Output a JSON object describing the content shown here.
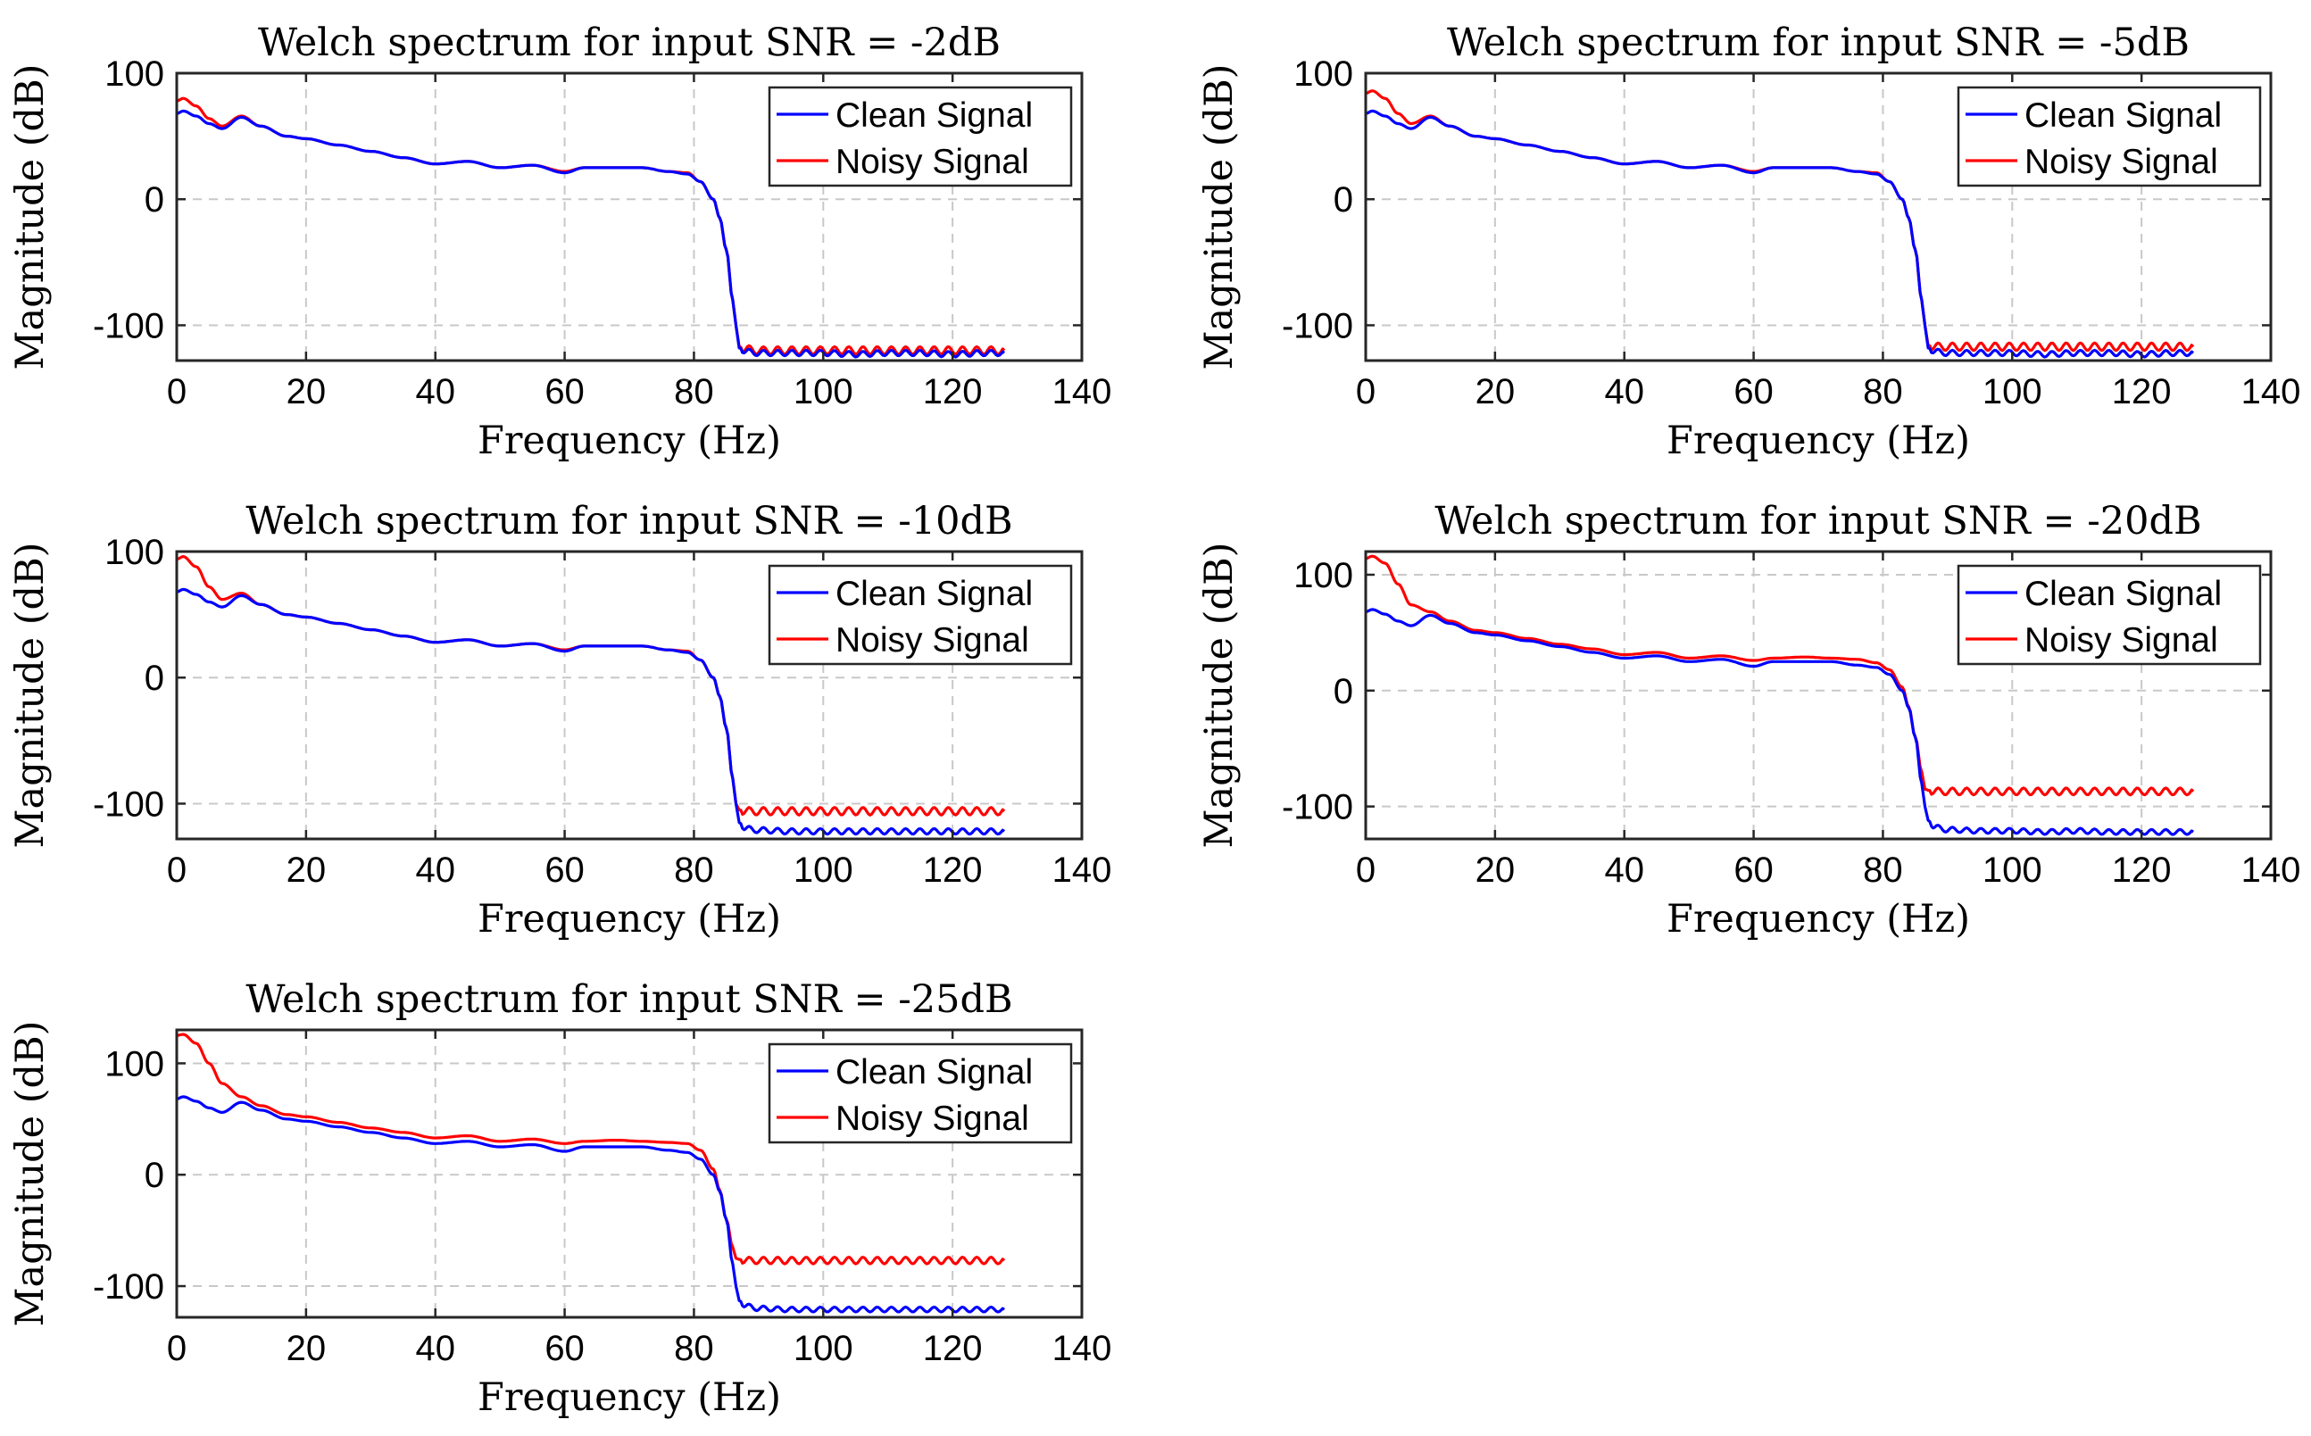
{
  "chart_data": [
    {
      "type": "line",
      "title": "Welch spectrum for input SNR = -2dB",
      "xlabel": "Frequency (Hz)",
      "ylabel": "Magnitude (dB)",
      "xlim": [
        0,
        140
      ],
      "ylim": [
        -128,
        100
      ],
      "xticks": [
        0,
        20,
        40,
        60,
        80,
        100,
        120,
        140
      ],
      "yticks": [
        -100,
        0,
        100
      ],
      "grid": true,
      "legend": "top-right",
      "noise_floor": -121,
      "series": [
        {
          "name": "Clean Signal",
          "color": "#0000ff",
          "x": [
            0,
            1,
            3,
            5,
            7,
            10,
            13,
            17,
            20,
            25,
            30,
            35,
            40,
            45,
            50,
            55,
            60,
            63,
            68,
            72,
            76,
            79,
            81,
            83,
            84,
            85,
            86,
            86.5,
            87,
            88,
            90,
            95,
            100,
            105,
            110,
            115,
            120,
            125,
            128
          ],
          "y": [
            68,
            70,
            66,
            60,
            56,
            65,
            58,
            50,
            48,
            43,
            38,
            33,
            28,
            30,
            25,
            27,
            21,
            25,
            25,
            25,
            22,
            20,
            14,
            0,
            -15,
            -40,
            -80,
            -100,
            -118,
            -121,
            -122,
            -122,
            -122,
            -123,
            -122,
            -122,
            -123,
            -122,
            -122
          ]
        },
        {
          "name": "Noisy Signal",
          "color": "#ff0000",
          "x": [
            0,
            1,
            3,
            5,
            7,
            10,
            13,
            17,
            20,
            25,
            30,
            35,
            40,
            45,
            50,
            55,
            60,
            63,
            68,
            72,
            76,
            79,
            81,
            83,
            84,
            85,
            86,
            86.5,
            87,
            88,
            90,
            95,
            100,
            105,
            110,
            115,
            120,
            125,
            128
          ],
          "y": [
            78,
            80,
            74,
            64,
            58,
            66,
            58,
            50,
            48,
            43,
            38,
            33,
            28,
            30,
            25,
            27,
            22,
            25,
            25,
            25,
            22,
            21,
            14,
            0,
            -15,
            -40,
            -80,
            -100,
            -117,
            -119,
            -120,
            -120,
            -120,
            -120,
            -120,
            -120,
            -120,
            -120,
            -120
          ]
        }
      ]
    },
    {
      "type": "line",
      "title": "Welch spectrum for input SNR = -5dB",
      "xlabel": "Frequency (Hz)",
      "ylabel": "Magnitude (dB)",
      "xlim": [
        0,
        140
      ],
      "ylim": [
        -128,
        100
      ],
      "xticks": [
        0,
        20,
        40,
        60,
        80,
        100,
        120,
        140
      ],
      "yticks": [
        -100,
        0,
        100
      ],
      "grid": true,
      "legend": "top-right",
      "noise_floor": -118,
      "series": [
        {
          "name": "Clean Signal",
          "color": "#0000ff",
          "x": [
            0,
            1,
            3,
            5,
            7,
            10,
            13,
            17,
            20,
            25,
            30,
            35,
            40,
            45,
            50,
            55,
            60,
            63,
            68,
            72,
            76,
            79,
            81,
            83,
            84,
            85,
            86,
            86.5,
            87,
            88,
            90,
            95,
            100,
            105,
            110,
            115,
            120,
            125,
            128
          ],
          "y": [
            68,
            70,
            66,
            60,
            56,
            65,
            58,
            50,
            48,
            43,
            38,
            33,
            28,
            30,
            25,
            27,
            21,
            25,
            25,
            25,
            22,
            20,
            14,
            0,
            -15,
            -40,
            -80,
            -100,
            -118,
            -121,
            -122,
            -122,
            -122,
            -123,
            -122,
            -122,
            -123,
            -122,
            -122
          ]
        },
        {
          "name": "Noisy Signal",
          "color": "#ff0000",
          "x": [
            0,
            1,
            3,
            5,
            7,
            10,
            13,
            17,
            20,
            25,
            30,
            35,
            40,
            45,
            50,
            55,
            60,
            63,
            68,
            72,
            76,
            79,
            81,
            83,
            84,
            85,
            86,
            86.5,
            87,
            88,
            90,
            95,
            100,
            105,
            110,
            115,
            120,
            125,
            128
          ],
          "y": [
            84,
            86,
            80,
            68,
            60,
            66,
            58,
            50,
            48,
            43,
            38,
            33,
            28,
            30,
            25,
            27,
            22,
            25,
            25,
            25,
            22,
            21,
            14,
            0,
            -15,
            -40,
            -80,
            -100,
            -116,
            -117,
            -117,
            -117,
            -117,
            -117,
            -117,
            -117,
            -117,
            -117,
            -117
          ]
        }
      ]
    },
    {
      "type": "line",
      "title": "Welch spectrum for input SNR = -10dB",
      "xlabel": "Frequency (Hz)",
      "ylabel": "Magnitude (dB)",
      "xlim": [
        0,
        140
      ],
      "ylim": [
        -128,
        100
      ],
      "xticks": [
        0,
        20,
        40,
        60,
        80,
        100,
        120,
        140
      ],
      "yticks": [
        -100,
        0,
        100
      ],
      "grid": true,
      "legend": "top-right",
      "noise_floor": -107,
      "series": [
        {
          "name": "Clean Signal",
          "color": "#0000ff",
          "x": [
            0,
            1,
            3,
            5,
            7,
            10,
            13,
            17,
            20,
            25,
            30,
            35,
            40,
            45,
            50,
            55,
            60,
            63,
            68,
            72,
            76,
            79,
            81,
            83,
            84,
            85,
            86,
            86.5,
            87,
            88,
            90,
            95,
            100,
            105,
            110,
            115,
            120,
            125,
            128
          ],
          "y": [
            68,
            70,
            66,
            60,
            56,
            65,
            58,
            50,
            48,
            43,
            38,
            33,
            28,
            30,
            25,
            27,
            21,
            25,
            25,
            25,
            22,
            20,
            14,
            0,
            -15,
            -40,
            -80,
            -100,
            -115,
            -120,
            -121,
            -122,
            -122,
            -122,
            -122,
            -122,
            -122,
            -122,
            -122
          ]
        },
        {
          "name": "Noisy Signal",
          "color": "#ff0000",
          "x": [
            0,
            1,
            3,
            5,
            7,
            10,
            13,
            17,
            20,
            25,
            30,
            35,
            40,
            45,
            50,
            55,
            60,
            63,
            68,
            72,
            76,
            79,
            81,
            83,
            84,
            85,
            86,
            86.5,
            87,
            88,
            90,
            95,
            100,
            105,
            110,
            115,
            120,
            125,
            128
          ],
          "y": [
            94,
            96,
            88,
            72,
            62,
            67,
            58,
            50,
            48,
            43,
            38,
            33,
            28,
            30,
            25,
            27,
            22,
            25,
            25,
            25,
            22,
            21,
            14,
            0,
            -15,
            -40,
            -80,
            -100,
            -105,
            -106,
            -106,
            -106,
            -106,
            -106,
            -106,
            -106,
            -106,
            -106,
            -106
          ]
        }
      ]
    },
    {
      "type": "line",
      "title": "Welch spectrum for input SNR = -20dB",
      "xlabel": "Frequency (Hz)",
      "ylabel": "Magnitude (dB)",
      "xlim": [
        0,
        140
      ],
      "ylim": [
        -128,
        120
      ],
      "xticks": [
        0,
        20,
        40,
        60,
        80,
        100,
        120,
        140
      ],
      "yticks": [
        -100,
        0,
        100
      ],
      "grid": true,
      "legend": "top-right",
      "noise_floor": -87,
      "series": [
        {
          "name": "Clean Signal",
          "color": "#0000ff",
          "x": [
            0,
            1,
            3,
            5,
            7,
            10,
            13,
            17,
            20,
            25,
            30,
            35,
            40,
            45,
            50,
            55,
            60,
            63,
            68,
            72,
            76,
            79,
            81,
            83,
            84,
            85,
            86,
            86.5,
            87,
            88,
            90,
            95,
            100,
            105,
            110,
            115,
            120,
            125,
            128
          ],
          "y": [
            68,
            70,
            66,
            60,
            56,
            65,
            58,
            50,
            48,
            43,
            38,
            33,
            28,
            30,
            25,
            27,
            21,
            25,
            25,
            25,
            22,
            20,
            14,
            0,
            -15,
            -40,
            -80,
            -100,
            -112,
            -118,
            -120,
            -121,
            -121,
            -122,
            -121,
            -122,
            -122,
            -122,
            -122
          ]
        },
        {
          "name": "Noisy Signal",
          "color": "#ff0000",
          "x": [
            0,
            1,
            3,
            5,
            7,
            10,
            13,
            17,
            20,
            25,
            30,
            35,
            40,
            45,
            50,
            55,
            60,
            63,
            68,
            72,
            76,
            79,
            81,
            83,
            84,
            85,
            86,
            86.5,
            87,
            88,
            90,
            95,
            100,
            105,
            110,
            115,
            120,
            125,
            128
          ],
          "y": [
            114,
            116,
            110,
            92,
            74,
            68,
            60,
            52,
            50,
            45,
            40,
            36,
            31,
            33,
            28,
            30,
            26,
            28,
            29,
            28,
            27,
            24,
            18,
            3,
            -14,
            -40,
            -70,
            -85,
            -86,
            -87,
            -87,
            -87,
            -87,
            -87,
            -87,
            -87,
            -87,
            -87,
            -87
          ]
        }
      ]
    },
    {
      "type": "line",
      "title": "Welch spectrum for input SNR = -25dB",
      "xlabel": "Frequency (Hz)",
      "ylabel": "Magnitude (dB)",
      "xlim": [
        0,
        140
      ],
      "ylim": [
        -128,
        130
      ],
      "xticks": [
        0,
        20,
        40,
        60,
        80,
        100,
        120,
        140
      ],
      "yticks": [
        -100,
        0,
        100
      ],
      "grid": true,
      "legend": "top-right",
      "noise_floor": -77,
      "series": [
        {
          "name": "Clean Signal",
          "color": "#0000ff",
          "x": [
            0,
            1,
            3,
            5,
            7,
            10,
            13,
            17,
            20,
            25,
            30,
            35,
            40,
            45,
            50,
            55,
            60,
            63,
            68,
            72,
            76,
            79,
            81,
            83,
            84,
            85,
            86,
            86.5,
            87,
            88,
            90,
            95,
            100,
            105,
            110,
            115,
            120,
            125,
            128
          ],
          "y": [
            68,
            70,
            66,
            60,
            56,
            65,
            58,
            50,
            48,
            43,
            38,
            33,
            28,
            30,
            25,
            27,
            21,
            25,
            25,
            25,
            22,
            20,
            14,
            0,
            -15,
            -40,
            -80,
            -100,
            -113,
            -118,
            -120,
            -121,
            -121,
            -121,
            -121,
            -121,
            -121,
            -121,
            -121
          ]
        },
        {
          "name": "Noisy Signal",
          "color": "#ff0000",
          "x": [
            0,
            1,
            3,
            5,
            7,
            10,
            13,
            17,
            20,
            25,
            30,
            35,
            40,
            45,
            50,
            55,
            60,
            63,
            68,
            72,
            76,
            79,
            81,
            83,
            84,
            85,
            86,
            86.5,
            87,
            88,
            90,
            95,
            100,
            105,
            110,
            115,
            120,
            125,
            128
          ],
          "y": [
            125,
            126,
            118,
            100,
            82,
            70,
            62,
            54,
            52,
            47,
            42,
            38,
            33,
            35,
            30,
            32,
            28,
            30,
            31,
            30,
            29,
            28,
            22,
            5,
            -14,
            -40,
            -65,
            -75,
            -76,
            -77,
            -77,
            -77,
            -77,
            -77,
            -77,
            -77,
            -77,
            -77,
            -77
          ]
        }
      ]
    }
  ]
}
